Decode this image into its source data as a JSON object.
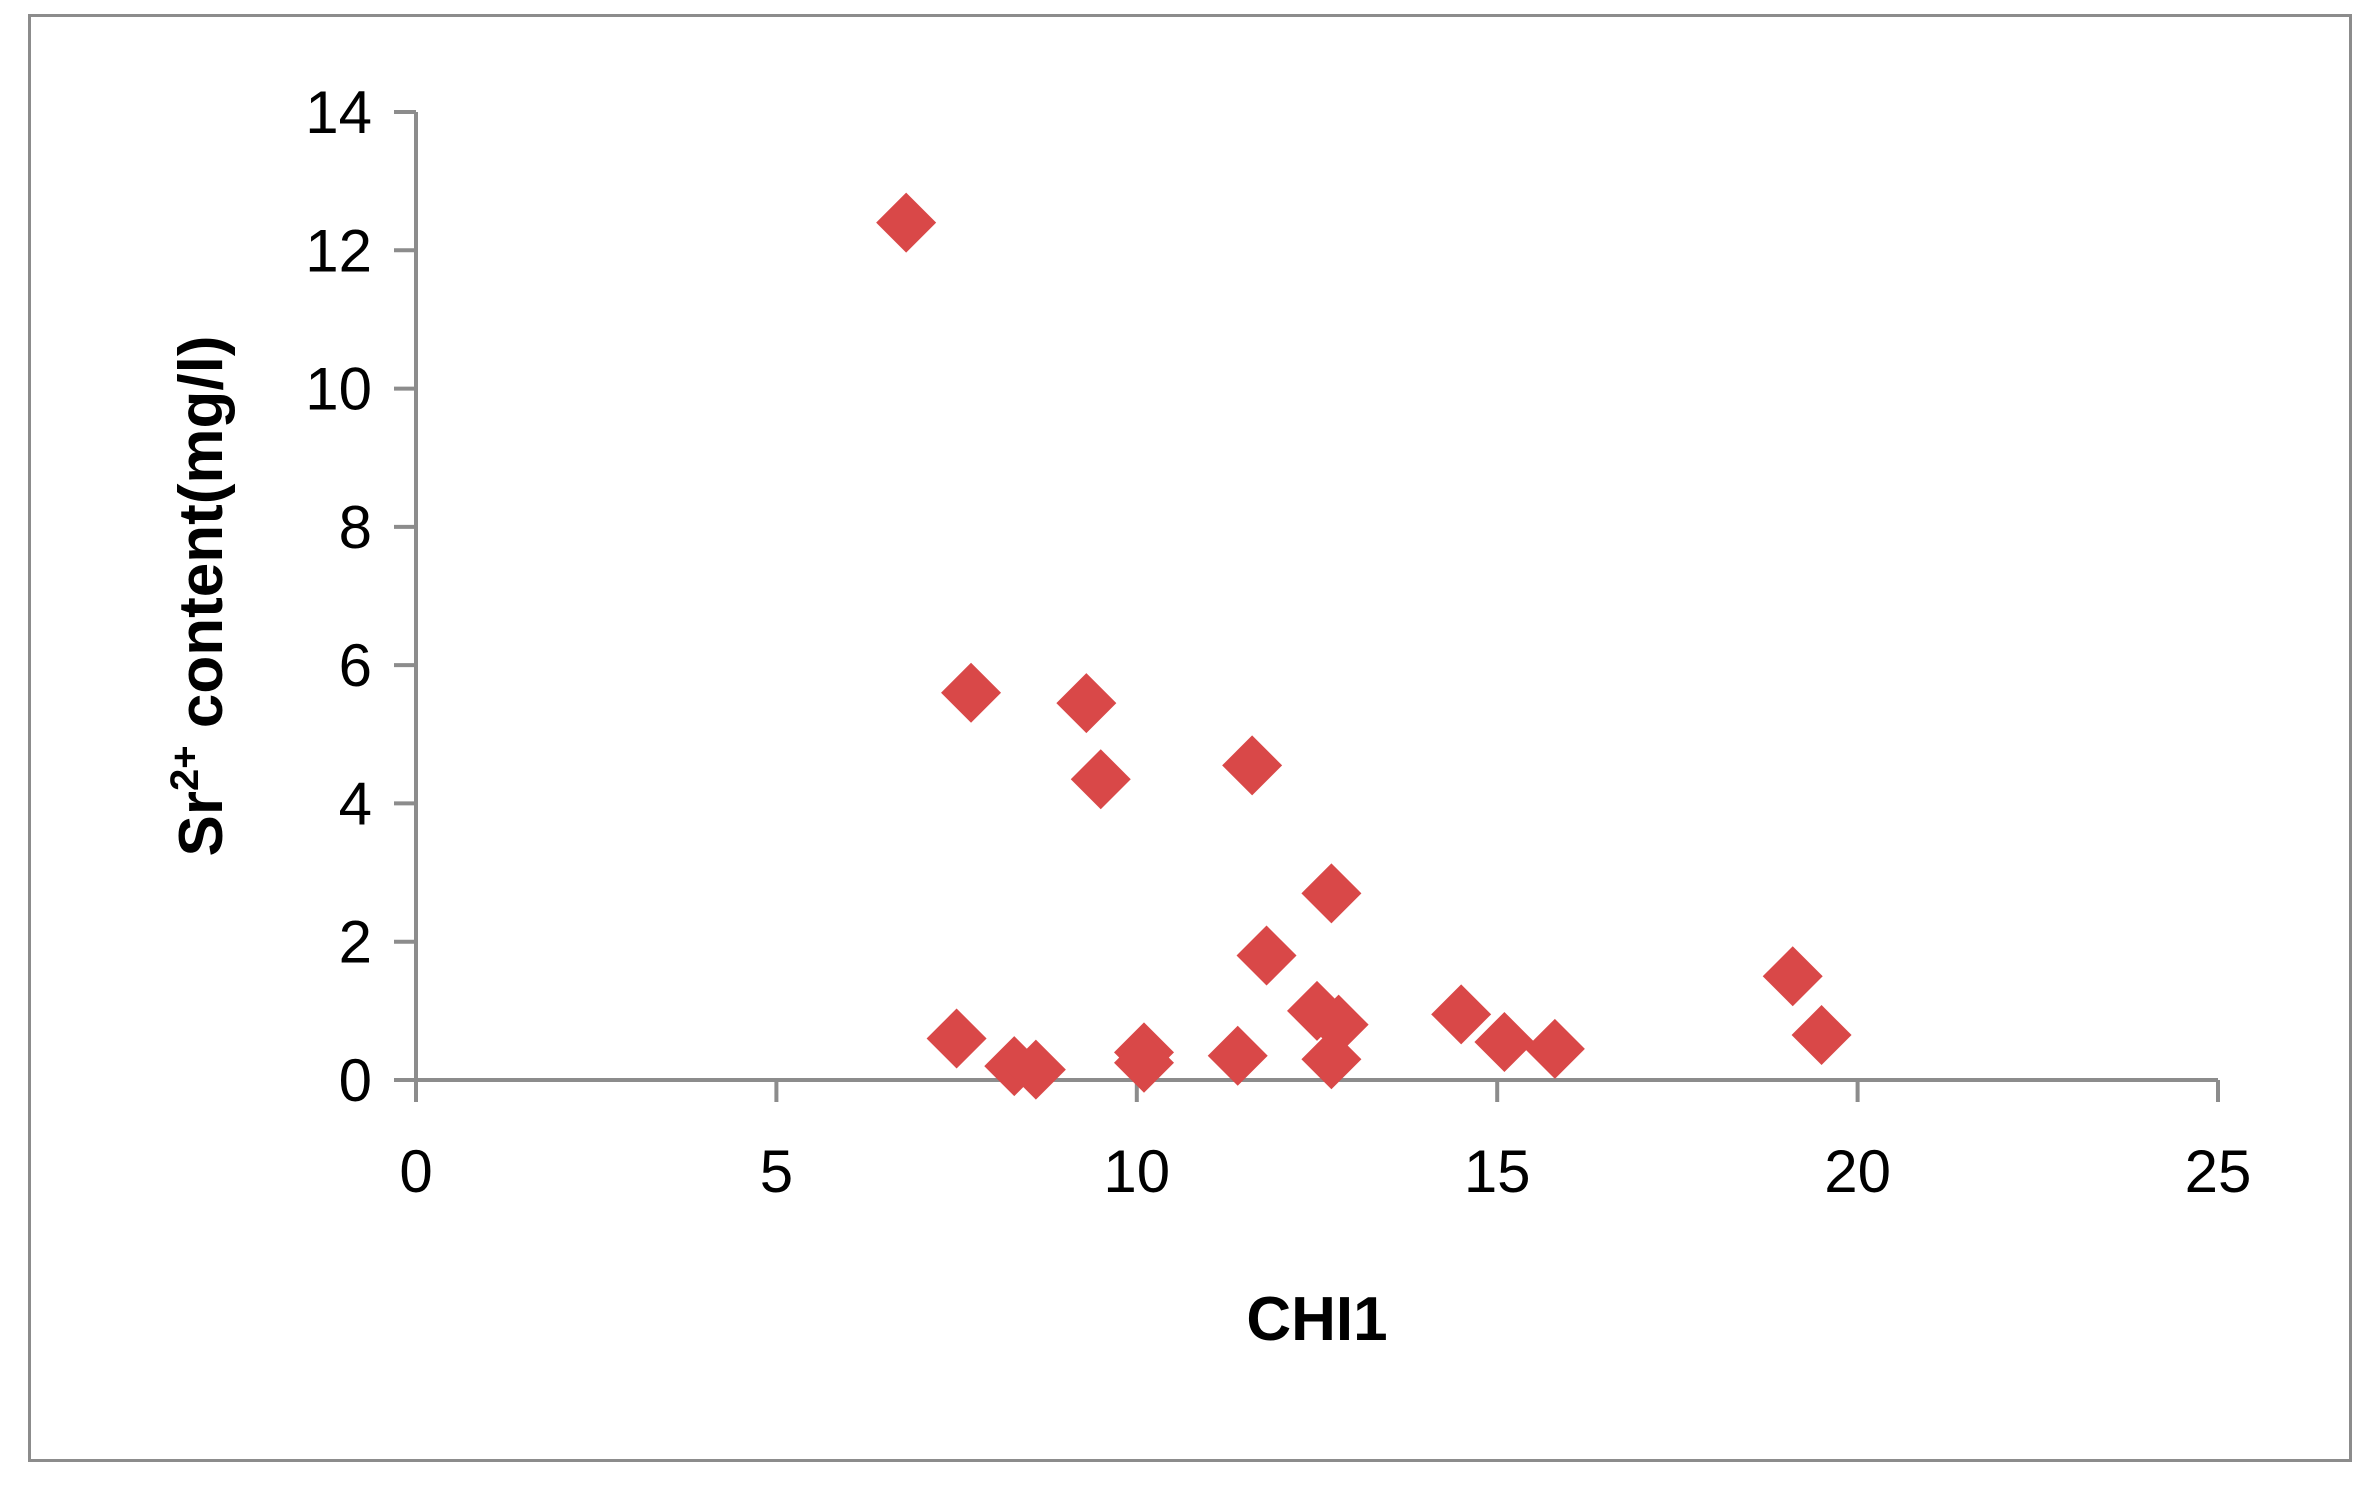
{
  "chart_data": {
    "type": "scatter",
    "xlabel": "CHI1",
    "ylabel_main": "Sr",
    "ylabel_sup": "2+",
    "ylabel_rest": " content(mg/l)",
    "xlim": [
      0,
      25
    ],
    "ylim": [
      0,
      14
    ],
    "xticks": [
      0,
      5,
      10,
      15,
      20,
      25
    ],
    "yticks": [
      0,
      2,
      4,
      6,
      8,
      10,
      12,
      14
    ],
    "grid": false,
    "marker": "diamond",
    "marker_color": "#d94848",
    "series": [
      {
        "x": [
          6.8,
          7.7,
          9.3,
          9.5,
          11.6,
          12.7,
          11.8,
          7.5,
          8.3,
          8.6,
          10.1,
          10.1,
          11.4,
          12.5,
          12.8,
          12.7,
          14.5,
          15.1,
          15.8,
          19.1,
          19.5
        ],
        "y": [
          12.4,
          5.6,
          5.45,
          4.35,
          4.55,
          2.7,
          1.8,
          0.6,
          0.2,
          0.15,
          0.4,
          0.25,
          0.35,
          1.0,
          0.8,
          0.3,
          0.95,
          0.55,
          0.45,
          1.5,
          0.65
        ]
      }
    ]
  }
}
